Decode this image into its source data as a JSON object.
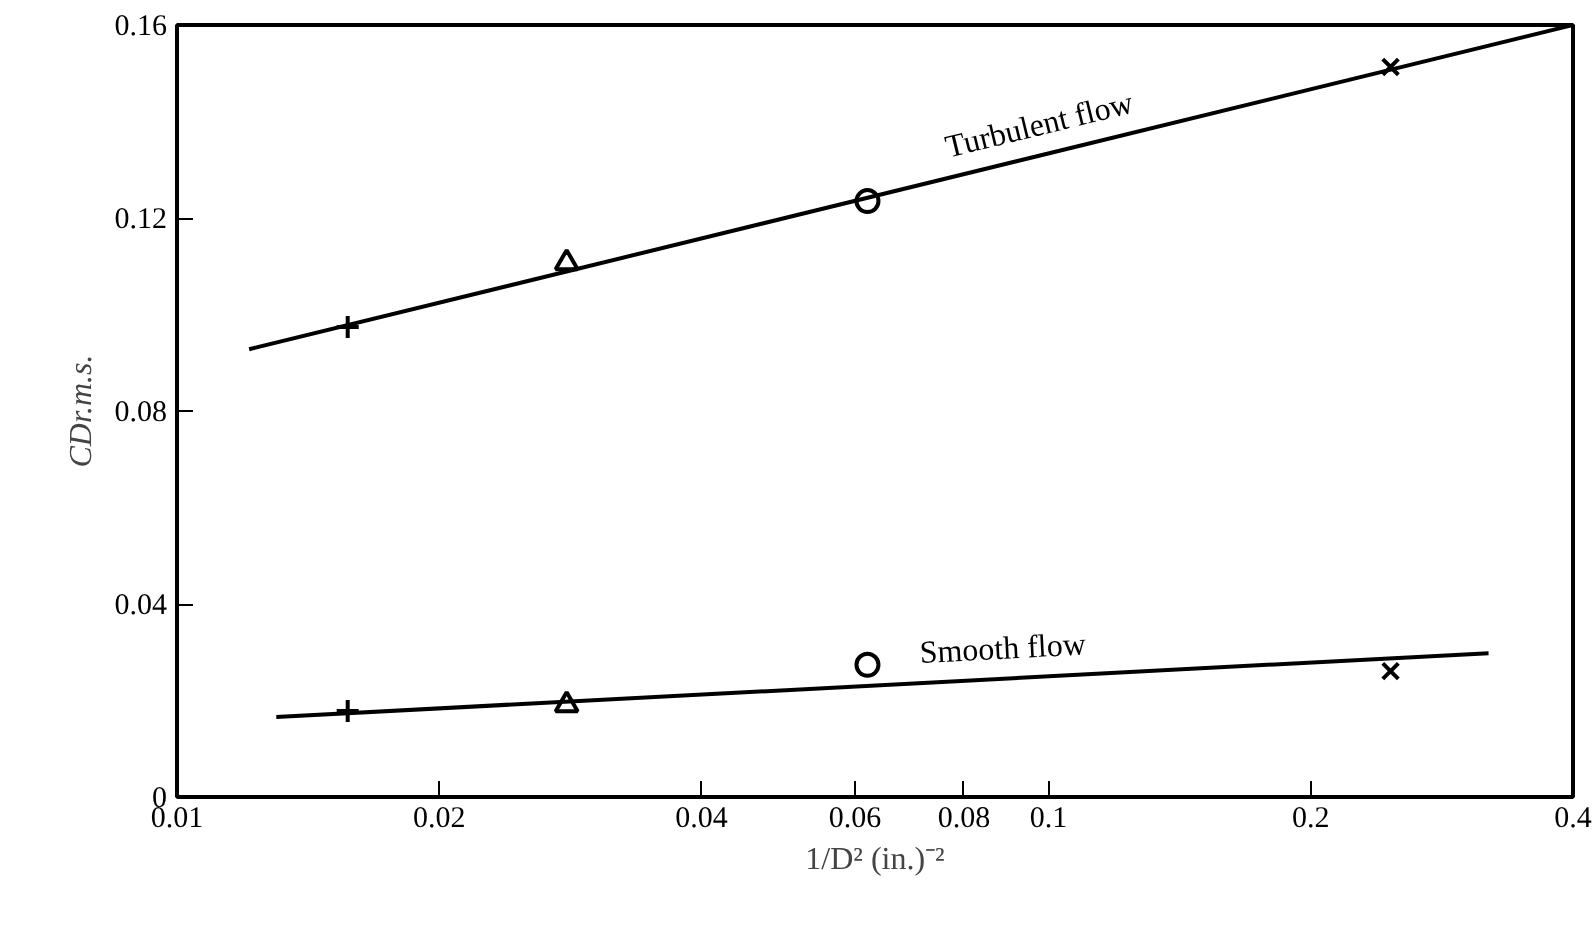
{
  "chart_data": {
    "type": "scatter",
    "xlabel": "1/D² (in.)⁻²",
    "ylabel": "CDr.m.s.",
    "log": "x",
    "xlim": [
      0.01,
      0.4
    ],
    "ylim": [
      0,
      0.16
    ],
    "xticks": [
      0.01,
      0.02,
      0.04,
      0.06,
      0.08,
      0.1,
      0.2,
      0.4
    ],
    "yticks": [
      0,
      0.04,
      0.08,
      0.12,
      0.16
    ],
    "grid": false,
    "legend": false,
    "series": [
      {
        "type": "line",
        "name": "Turbulent flow",
        "color": "#000000",
        "line_style": "solid",
        "x": [
          0.0121,
          0.4
        ],
        "values": [
          0.0928,
          0.16
        ]
      },
      {
        "type": "line",
        "name": "Smooth flow",
        "color": "#000000",
        "line_style": "solid",
        "x": [
          0.013,
          0.32
        ],
        "values": [
          0.0166,
          0.0298
        ]
      },
      {
        "type": "scatter",
        "marker": "cross",
        "color": "#000000",
        "x": [
          0.0157,
          0.0157
        ],
        "values": [
          0.0974,
          0.0178
        ]
      },
      {
        "type": "scatter",
        "marker": "triangle",
        "color": "#000000",
        "x": [
          0.028,
          0.028
        ],
        "values": [
          0.1107,
          0.0191
        ]
      },
      {
        "type": "scatter",
        "marker": "circle",
        "color": "#000000",
        "x": [
          0.062,
          0.062
        ],
        "values": [
          0.1235,
          0.0274
        ]
      },
      {
        "type": "scatter",
        "marker": "x",
        "color": "#000000",
        "x": [
          0.247,
          0.247
        ],
        "values": [
          0.1513,
          0.0261
        ]
      }
    ]
  }
}
